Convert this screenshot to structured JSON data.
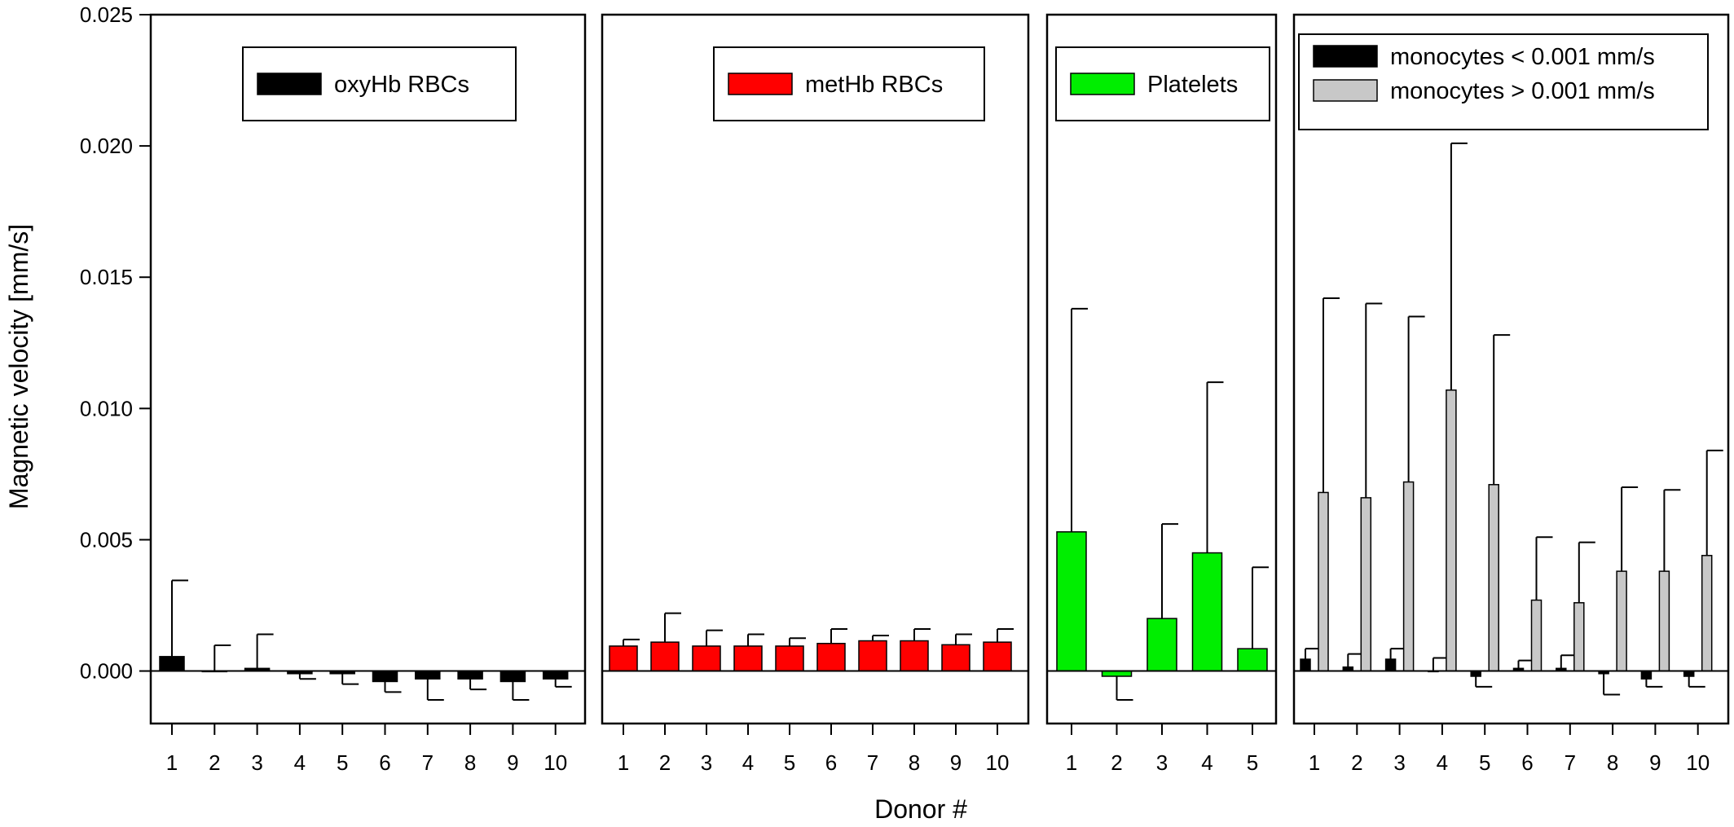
{
  "figure": {
    "ylabel": "Magnetic velocity [mm/s]",
    "xlabel": "Donor #",
    "ylim": [
      -0.002,
      0.025
    ],
    "yticks": [
      0.0,
      0.005,
      0.01,
      0.015,
      0.02,
      0.025
    ],
    "ytick_labels": [
      "0.000",
      "0.005",
      "0.010",
      "0.015",
      "0.020",
      "0.025"
    ]
  },
  "colors": {
    "oxyhb": "#000000",
    "methb": "#ff0000",
    "platelets": "#00ee00",
    "mono_low": "#000000",
    "mono_high": "#c8c8c8"
  },
  "chart_data": [
    {
      "type": "bar",
      "categories": [
        "1",
        "2",
        "3",
        "4",
        "5",
        "6",
        "7",
        "8",
        "9",
        "10"
      ],
      "series": [
        {
          "name": "oxyHb RBCs",
          "color": "#000000",
          "values": [
            0.00055,
            0.0,
            0.0001,
            -0.0001,
            -0.0001,
            -0.0004,
            -0.0003,
            -0.0003,
            -0.0004,
            -0.0003
          ],
          "errors": [
            0.0029,
            0.00098,
            0.0013,
            0.0002,
            0.0004,
            0.0004,
            0.0008,
            0.0004,
            0.0007,
            0.0003
          ]
        }
      ],
      "ylim": [
        -0.002,
        0.025
      ]
    },
    {
      "type": "bar",
      "categories": [
        "1",
        "2",
        "3",
        "4",
        "5",
        "6",
        "7",
        "8",
        "9",
        "10"
      ],
      "series": [
        {
          "name": "metHb RBCs",
          "color": "#ff0000",
          "values": [
            0.00095,
            0.0011,
            0.00095,
            0.00095,
            0.00095,
            0.00105,
            0.00115,
            0.00115,
            0.001,
            0.0011
          ],
          "errors": [
            0.00025,
            0.0011,
            0.0006,
            0.00045,
            0.0003,
            0.00055,
            0.0002,
            0.00045,
            0.0004,
            0.0005
          ]
        }
      ],
      "ylim": [
        -0.002,
        0.025
      ]
    },
    {
      "type": "bar",
      "categories": [
        "1",
        "2",
        "3",
        "4",
        "5"
      ],
      "series": [
        {
          "name": "Platelets",
          "color": "#00ee00",
          "values": [
            0.0053,
            -0.0002,
            0.002,
            0.0045,
            0.00085
          ],
          "errors": [
            0.0085,
            0.0009,
            0.0036,
            0.0065,
            0.0031
          ]
        }
      ],
      "ylim": [
        -0.002,
        0.025
      ]
    },
    {
      "type": "bar",
      "categories": [
        "1",
        "2",
        "3",
        "4",
        "5",
        "6",
        "7",
        "8",
        "9",
        "10"
      ],
      "series": [
        {
          "name": "monocytes < 0.001 mm/s",
          "color": "#000000",
          "values": [
            0.00045,
            0.00015,
            0.00045,
            0.0,
            -0.0002,
            0.0001,
            0.0001,
            -0.0001,
            -0.0003,
            -0.0002
          ],
          "errors": [
            0.0004,
            0.0005,
            0.0004,
            0.0005,
            0.0004,
            0.0003,
            0.0005,
            0.0008,
            0.0003,
            0.0004
          ]
        },
        {
          "name": "monocytes > 0.001 mm/s",
          "color": "#c8c8c8",
          "values": [
            0.0068,
            0.0066,
            0.0072,
            0.0107,
            0.0071,
            0.0027,
            0.0026,
            0.0038,
            0.0038,
            0.0044
          ],
          "errors": [
            0.0074,
            0.0074,
            0.0063,
            0.0094,
            0.0057,
            0.0024,
            0.0023,
            0.0032,
            0.0031,
            0.004
          ]
        }
      ],
      "ylim": [
        -0.002,
        0.025
      ]
    }
  ]
}
